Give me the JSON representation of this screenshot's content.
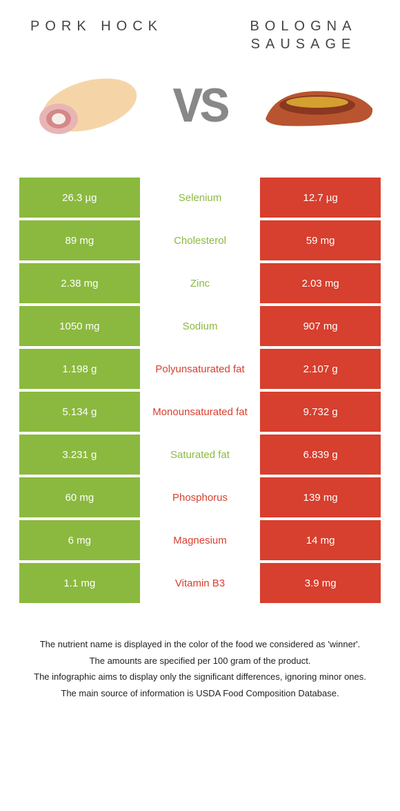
{
  "colors": {
    "green": "#8bb93f",
    "red": "#d73f2e",
    "white": "#ffffff"
  },
  "left_title": "PORK HOCK",
  "right_title_line1": "BOLOGNA",
  "right_title_line2": "SAUSAGE",
  "vs": "VS",
  "rows": [
    {
      "label": "Selenium",
      "left": "26.3 µg",
      "right": "12.7 µg",
      "winner": "left"
    },
    {
      "label": "Cholesterol",
      "left": "89 mg",
      "right": "59 mg",
      "winner": "left"
    },
    {
      "label": "Zinc",
      "left": "2.38 mg",
      "right": "2.03 mg",
      "winner": "left"
    },
    {
      "label": "Sodium",
      "left": "1050 mg",
      "right": "907 mg",
      "winner": "left"
    },
    {
      "label": "Polyunsaturated fat",
      "left": "1.198 g",
      "right": "2.107 g",
      "winner": "right"
    },
    {
      "label": "Monounsaturated fat",
      "left": "5.134 g",
      "right": "9.732 g",
      "winner": "right"
    },
    {
      "label": "Saturated fat",
      "left": "3.231 g",
      "right": "6.839 g",
      "winner": "left"
    },
    {
      "label": "Phosphorus",
      "left": "60 mg",
      "right": "139 mg",
      "winner": "right"
    },
    {
      "label": "Magnesium",
      "left": "6 mg",
      "right": "14 mg",
      "winner": "right"
    },
    {
      "label": "Vitamin B3",
      "left": "1.1 mg",
      "right": "3.9 mg",
      "winner": "right"
    }
  ],
  "footer": [
    "The nutrient name is displayed in the color of the food we considered as 'winner'.",
    "The amounts are specified per 100 gram of the product.",
    "The infographic aims to display only the significant differences, ignoring minor ones.",
    "The main source of information is USDA Food Composition Database."
  ]
}
